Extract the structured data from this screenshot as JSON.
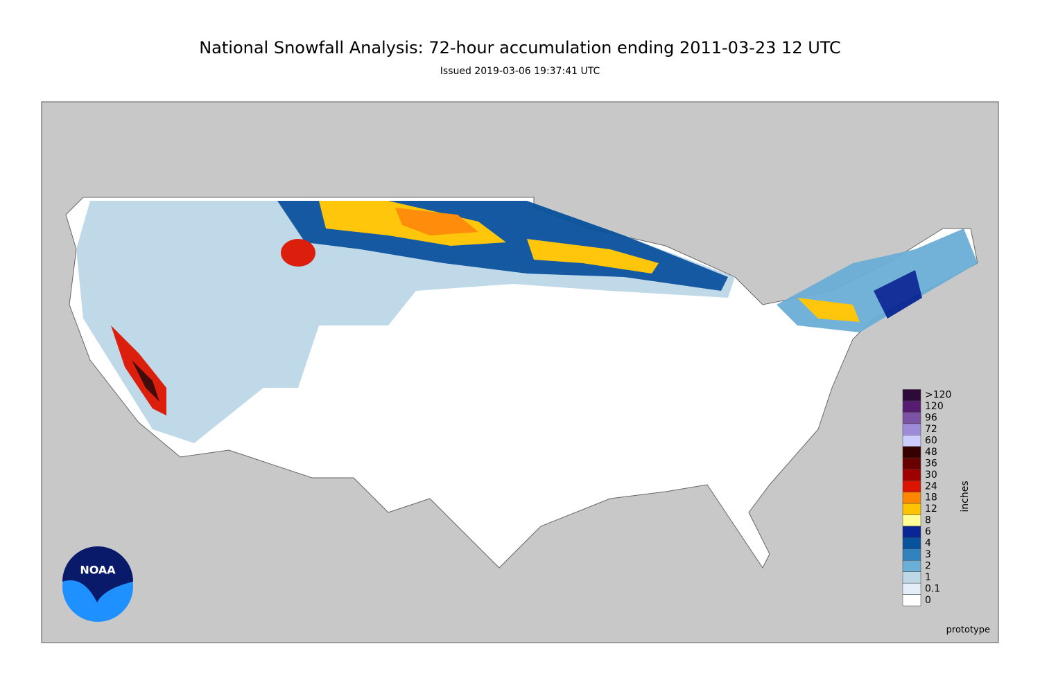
{
  "title": "National Snowfall Analysis: 72-hour accumulation ending 2011-03-23 12 UTC",
  "subtitle": "Issued 2019-03-06 19:37:41 UTC",
  "legend": {
    "unit": "inches",
    "bins": [
      {
        "label": "0",
        "color": "#ffffff"
      },
      {
        "label": "0.1",
        "color": "#e4eef9"
      },
      {
        "label": "1",
        "color": "#bdd7e7"
      },
      {
        "label": "2",
        "color": "#6baed6"
      },
      {
        "label": "3",
        "color": "#3182bd"
      },
      {
        "label": "4",
        "color": "#08519c"
      },
      {
        "label": "6",
        "color": "#082694"
      },
      {
        "label": "8",
        "color": "#ffff96"
      },
      {
        "label": "12",
        "color": "#ffc400"
      },
      {
        "label": "18",
        "color": "#ff8700"
      },
      {
        "label": "24",
        "color": "#db1400"
      },
      {
        "label": "30",
        "color": "#9e0000"
      },
      {
        "label": "36",
        "color": "#690000"
      },
      {
        "label": "48",
        "color": "#360000"
      },
      {
        "label": "60",
        "color": "#ccccff"
      },
      {
        "label": "72",
        "color": "#9f8cd8"
      },
      {
        "label": "96",
        "color": "#7c52a5"
      },
      {
        "label": "120",
        "color": "#561c72"
      },
      {
        "label": ">120",
        "color": "#2e0a39"
      }
    ]
  },
  "watermark": "prototype",
  "logo": "NOAA"
}
